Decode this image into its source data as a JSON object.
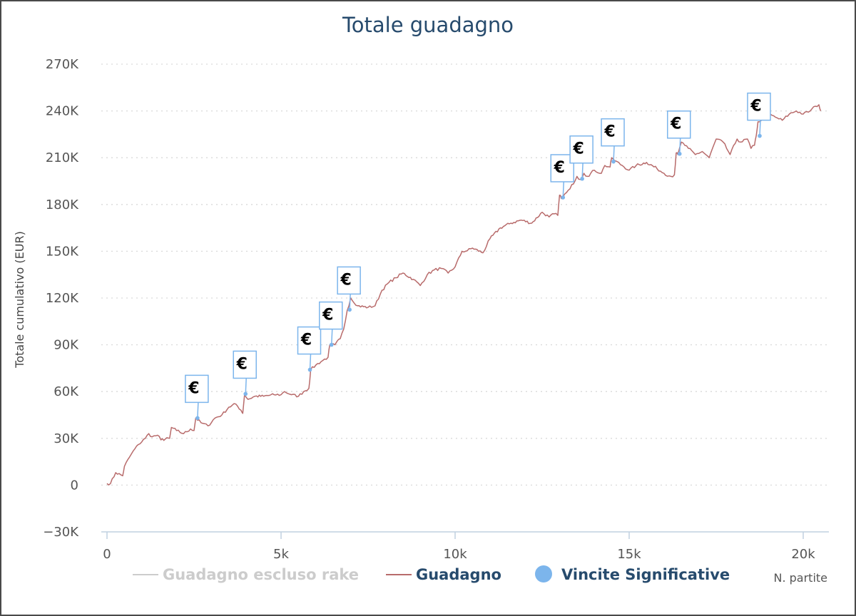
{
  "chart_data": {
    "type": "line",
    "title": "Totale guadagno",
    "xlabel": "N. partite",
    "ylabel": "Totale cumulativo (EUR)",
    "xlim": [
      0,
      20700
    ],
    "ylim": [
      -30000,
      270000
    ],
    "x_ticks": [
      0,
      5000,
      10000,
      15000,
      20000
    ],
    "x_tick_labels": [
      "0",
      "5k",
      "10k",
      "15k",
      "20k"
    ],
    "y_ticks": [
      -30000,
      0,
      30000,
      60000,
      90000,
      120000,
      150000,
      180000,
      210000,
      240000,
      270000
    ],
    "y_tick_labels": [
      "−30K",
      "0",
      "30K",
      "60K",
      "90K",
      "120K",
      "150K",
      "180K",
      "210K",
      "240K",
      "270K"
    ],
    "grid": "horizontal dotted",
    "legend": "bottom",
    "series": [
      {
        "name": "Guadagno escluso rake",
        "visible": false,
        "color": "#cccccc",
        "x": [],
        "y": []
      },
      {
        "name": "Guadagno",
        "color": "#b86b6b",
        "x": [
          0,
          100,
          250,
          450,
          500,
          700,
          900,
          1100,
          1200,
          1300,
          1450,
          1550,
          1800,
          1850,
          2000,
          2200,
          2400,
          2500,
          2550,
          2700,
          2900,
          3100,
          3300,
          3500,
          3700,
          3850,
          3900,
          3950,
          4050,
          4250,
          4500,
          4800,
          5000,
          5100,
          5300,
          5500,
          5650,
          5800,
          5850,
          6000,
          6200,
          6350,
          6400,
          6550,
          6700,
          6800,
          6900,
          7000,
          7200,
          7500,
          7700,
          7900,
          8100,
          8300,
          8500,
          8800,
          9000,
          9200,
          9400,
          9600,
          9800,
          10000,
          10200,
          10300,
          10500,
          10800,
          11000,
          11300,
          11600,
          11900,
          12200,
          12500,
          12700,
          12850,
          12950,
          13000,
          13050,
          13100,
          13300,
          13500,
          13600,
          13700,
          13800,
          14000,
          14200,
          14300,
          14450,
          14500,
          14600,
          14800,
          15000,
          15200,
          15500,
          15800,
          16000,
          16200,
          16300,
          16350,
          16400,
          16500,
          16700,
          16900,
          17100,
          17300,
          17500,
          17700,
          17900,
          18100,
          18200,
          18400,
          18500,
          18600,
          18650,
          18700,
          18800,
          19000,
          19200,
          19400,
          19600,
          19800,
          20000,
          20200,
          20350,
          20450,
          20500
        ],
        "y": [
          1000,
          1000,
          8000,
          6000,
          12000,
          20000,
          26000,
          30000,
          33000,
          31000,
          32000,
          29000,
          30000,
          37000,
          35000,
          33000,
          36000,
          35000,
          43000,
          40000,
          38000,
          43000,
          45000,
          50000,
          52000,
          48000,
          46000,
          58000,
          55000,
          57000,
          57000,
          58000,
          58000,
          60000,
          58000,
          57000,
          60000,
          62000,
          74000,
          77000,
          80000,
          82000,
          90000,
          90000,
          94000,
          100000,
          112000,
          120000,
          115000,
          114000,
          115000,
          125000,
          130000,
          133000,
          136000,
          132000,
          128000,
          135000,
          138000,
          139000,
          136000,
          140000,
          150000,
          150000,
          152000,
          149000,
          158000,
          165000,
          168000,
          170000,
          168000,
          175000,
          172000,
          174000,
          173000,
          186000,
          184000,
          185000,
          190000,
          198000,
          196000,
          200000,
          198000,
          202000,
          200000,
          205000,
          204000,
          210000,
          208000,
          205000,
          202000,
          205000,
          207000,
          203000,
          200000,
          198000,
          199000,
          213000,
          212000,
          220000,
          216000,
          212000,
          214000,
          210000,
          222000,
          220000,
          212000,
          222000,
          220000,
          222000,
          216000,
          218000,
          224000,
          233000,
          234000,
          238000,
          236000,
          234000,
          238000,
          240000,
          238000,
          240000,
          243000,
          244000,
          240000
        ]
      },
      {
        "name": "Vincite Significative",
        "color": "#7cb5ec",
        "marker": "€",
        "x": [
          2600,
          3980,
          5830,
          6450,
          6970,
          13100,
          13650,
          14550,
          16450,
          18750
        ],
        "y": [
          43000,
          58500,
          74000,
          90000,
          112500,
          184500,
          196500,
          207500,
          212500,
          224000
        ]
      }
    ]
  }
}
